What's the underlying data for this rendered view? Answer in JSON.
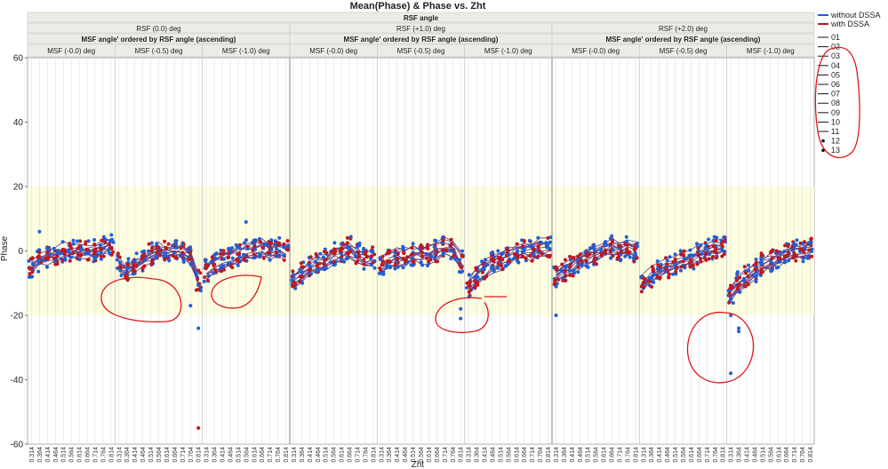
{
  "chart_data": {
    "type": "scatter",
    "title": "Mean(Phase) & Phase vs. Zht",
    "xlabel": "Zht",
    "ylabel": "Phase",
    "ylim": [
      -60,
      60
    ],
    "yticks": [
      60,
      40,
      20,
      0,
      -20,
      -40,
      -60
    ],
    "shaded_band": [
      -20,
      20
    ],
    "shaded_color": "#fdfde0",
    "group_header": "RSF angle",
    "sub_header": "MSF angle' ordered by RSF angle (ascending)",
    "rsf_groups": [
      "RSF (0.0) deg",
      "RSF (+1.0) deg",
      "RSF (+2.0) deg"
    ],
    "msf_groups": [
      "MSF (-0.0) deg",
      "MSF (-0.5) deg",
      "MSF (-1.0) deg"
    ],
    "x_categories": [
      "0.314",
      "0.364",
      "0.414",
      "0.464",
      "0.514",
      "0.564",
      "0.614",
      "0.664",
      "0.714",
      "0.764",
      "0.814"
    ],
    "series": [
      {
        "name": "without DSSA",
        "color": "#1f5fd6"
      },
      {
        "name": "with DSSA",
        "color": "#c0171f"
      }
    ],
    "line_color": "#5a3a8a",
    "legend_ids": [
      "01",
      "02",
      "03",
      "04",
      "05",
      "06",
      "07",
      "08",
      "09",
      "10",
      "11",
      "12",
      "13"
    ],
    "panels": [
      {
        "mean": [
          -5,
          -3,
          -2,
          -1,
          0,
          0,
          0,
          0,
          0,
          1,
          2
        ],
        "spread": 3,
        "outliers": [
          [
            1,
            6
          ]
        ]
      },
      {
        "mean": [
          -4,
          -6,
          -4,
          -3,
          -1,
          0,
          0,
          0,
          0,
          -2,
          -9
        ],
        "spread": 3,
        "outliers": [
          [
            9,
            -17
          ],
          [
            10,
            -24
          ],
          [
            10,
            -55
          ]
        ]
      },
      {
        "mean": [
          -6,
          -4,
          -3,
          -2,
          -1,
          0,
          0,
          1,
          0,
          1,
          0
        ],
        "spread": 3,
        "outliers": [
          [
            5,
            9
          ]
        ]
      },
      {
        "mean": [
          -9,
          -7,
          -5,
          -4,
          -3,
          -1,
          0,
          1,
          -1,
          -2,
          -2
        ],
        "spread": 3,
        "outliers": []
      },
      {
        "mean": [
          -4,
          -3,
          -2,
          -2,
          -1,
          -1,
          -1,
          0,
          1,
          1,
          -3
        ],
        "spread": 3,
        "outliers": [
          [
            10,
            -18
          ],
          [
            10,
            -21
          ]
        ]
      },
      {
        "mean": [
          -11,
          -8,
          -6,
          -4,
          -3,
          -2,
          -1,
          0,
          0,
          1,
          1
        ],
        "spread": 3,
        "outliers": []
      },
      {
        "mean": [
          -8,
          -6,
          -5,
          -3,
          -2,
          -1,
          0,
          1,
          0,
          1,
          0
        ],
        "spread": 3,
        "outliers": [
          [
            0,
            -20
          ]
        ]
      },
      {
        "mean": [
          -10,
          -8,
          -6,
          -5,
          -4,
          -3,
          -2,
          -1,
          0,
          1,
          1
        ],
        "spread": 3,
        "outliers": []
      },
      {
        "mean": [
          -13,
          -10,
          -8,
          -6,
          -4,
          -3,
          -2,
          -1,
          0,
          0,
          1
        ],
        "spread": 3,
        "outliers": [
          [
            0,
            -20
          ],
          [
            1,
            -24
          ],
          [
            1,
            -25
          ],
          [
            0,
            -38
          ]
        ]
      }
    ],
    "annotation_color": "#e01818"
  }
}
